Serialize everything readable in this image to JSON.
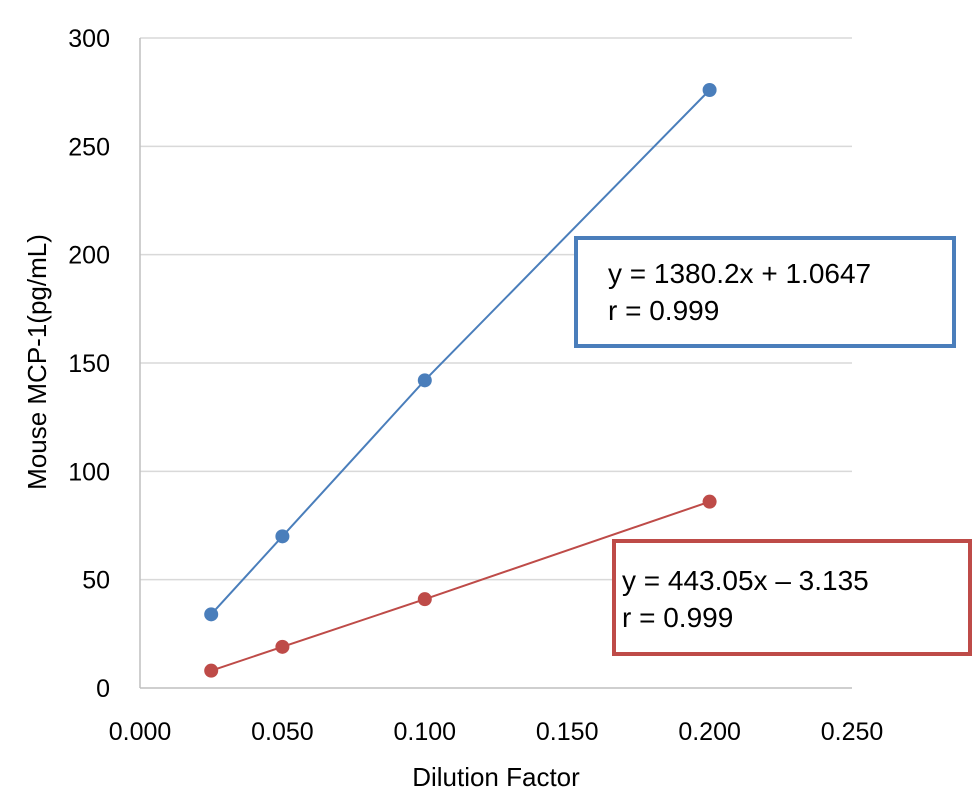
{
  "chart_data": {
    "type": "scatter",
    "xlabel": "Dilution Factor",
    "ylabel": "Mouse MCP-1(pg/mL)",
    "xlim": [
      0,
      0.25
    ],
    "ylim": [
      0,
      300
    ],
    "xticks": [
      0,
      0.05,
      0.1,
      0.15,
      0.2,
      0.25
    ],
    "xtick_labels": [
      "0.000",
      "0.050",
      "0.100",
      "0.150",
      "0.200",
      "0.250"
    ],
    "yticks": [
      0,
      50,
      100,
      150,
      200,
      250,
      300
    ],
    "ytick_labels": [
      "0",
      "50",
      "100",
      "150",
      "200",
      "250",
      "300"
    ],
    "grid": true,
    "series": [
      {
        "color": "#4a7ebb",
        "x": [
          0.025,
          0.05,
          0.1,
          0.2
        ],
        "y": [
          34,
          70,
          142,
          276
        ],
        "trendline": true
      },
      {
        "color": "#be4b48",
        "x": [
          0.025,
          0.05,
          0.1,
          0.2
        ],
        "y": [
          8,
          19,
          41,
          86
        ],
        "trendline": true
      }
    ],
    "annotations": [
      {
        "lines": [
          "y = 1380.2x + 1.0647",
          "r = 0.999"
        ],
        "border_color": "#4a7ebb"
      },
      {
        "lines": [
          "y = 443.05x – 3.135",
          "r = 0.999"
        ],
        "border_color": "#be4b48"
      }
    ]
  }
}
